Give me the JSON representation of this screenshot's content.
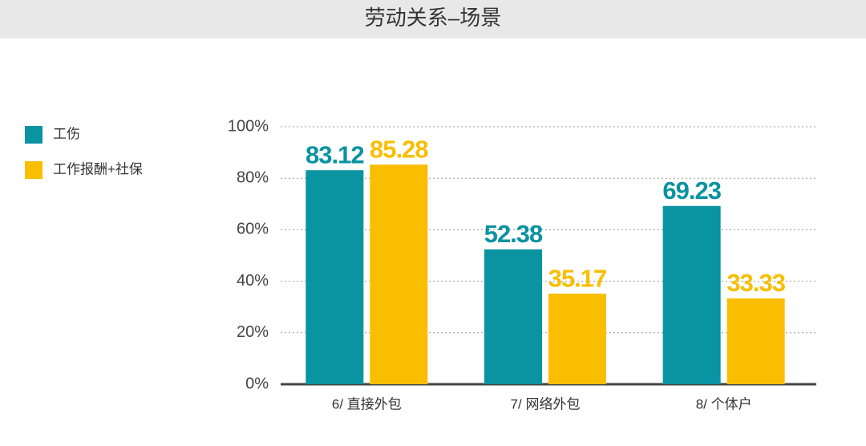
{
  "chart_data": {
    "type": "bar",
    "title": "劳动关系–场景",
    "categories": [
      "6/ 直接外包",
      "7/ 网络外包",
      "8/ 个体户"
    ],
    "series": [
      {
        "name": "工伤",
        "color": "#0a93a1",
        "values": [
          83.12,
          52.38,
          69.23
        ]
      },
      {
        "name": "工作报酬+社保",
        "color": "#f9be00",
        "values": [
          85.28,
          35.17,
          33.33
        ]
      }
    ],
    "ylim": [
      0,
      100
    ],
    "yticks": [
      {
        "value": 0,
        "label": "0%"
      },
      {
        "value": 20,
        "label": "20%"
      },
      {
        "value": 40,
        "label": "40%"
      },
      {
        "value": 60,
        "label": "60%"
      },
      {
        "value": 80,
        "label": "80%"
      },
      {
        "value": 100,
        "label": "100%"
      }
    ],
    "grid": true,
    "legend": "left",
    "value_labels_shown": true
  }
}
